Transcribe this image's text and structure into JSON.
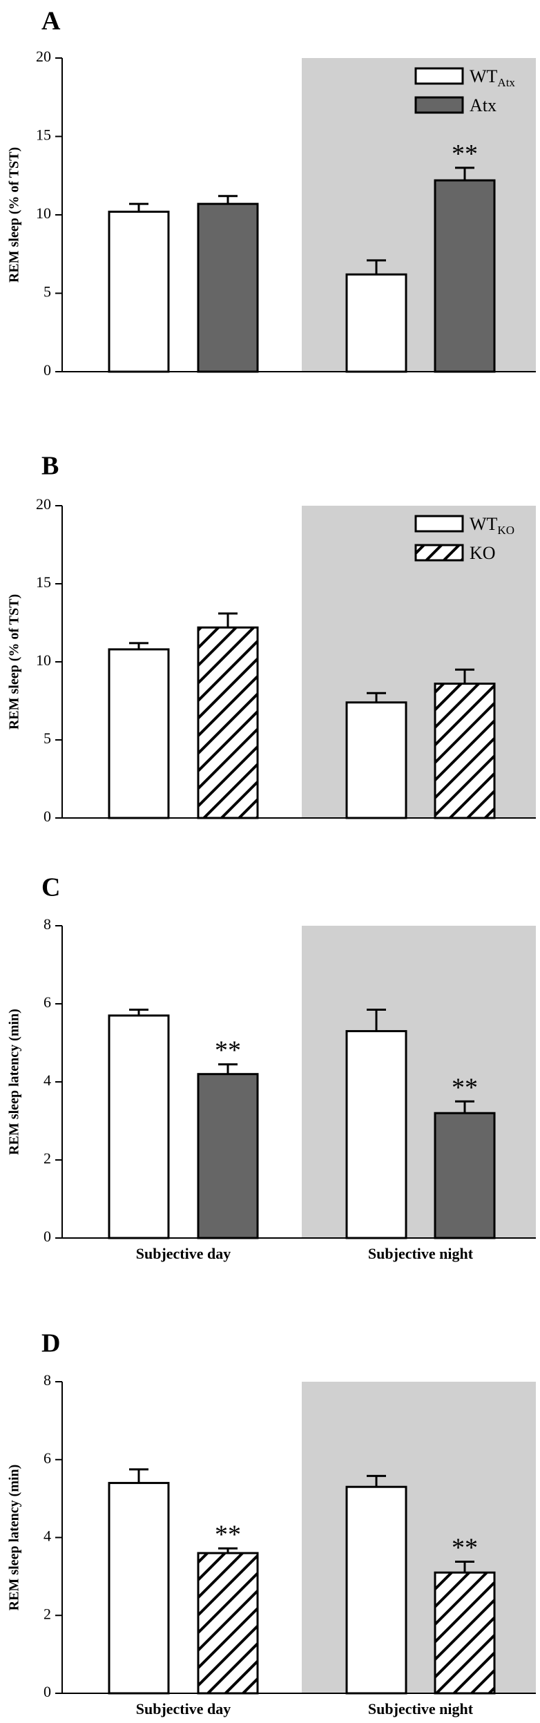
{
  "colors": {
    "shading": "#d0d0d0",
    "wt_fill": "#ffffff",
    "atx_fill": "#666666",
    "outline": "#000000"
  },
  "chart_data": [
    {
      "panel": "A",
      "type": "bar",
      "ylabel": "REM sleep (% of TST)",
      "ylim": [
        0,
        20
      ],
      "yticks": [
        "0",
        "5",
        "10",
        "15",
        "20"
      ],
      "categories": [
        "",
        ""
      ],
      "shaded_group": 1,
      "legend": [
        {
          "label": "WT",
          "sub": "Atx",
          "style": "open"
        },
        {
          "label": "Atx",
          "sub": "",
          "style": "dark"
        }
      ],
      "series": [
        {
          "name": "WT",
          "style": "open",
          "values": [
            10.2,
            6.2
          ],
          "errors": [
            0.5,
            0.9
          ],
          "sig": [
            "",
            ""
          ]
        },
        {
          "name": "Atx",
          "style": "dark",
          "values": [
            10.7,
            12.2
          ],
          "errors": [
            0.5,
            0.8
          ],
          "sig": [
            "",
            "**"
          ]
        }
      ]
    },
    {
      "panel": "B",
      "type": "bar",
      "ylabel": "REM sleep (% of TST)",
      "ylim": [
        0,
        20
      ],
      "yticks": [
        "0",
        "5",
        "10",
        "15",
        "20"
      ],
      "categories": [
        "",
        ""
      ],
      "shaded_group": 1,
      "legend": [
        {
          "label": "WT",
          "sub": "KO",
          "style": "open"
        },
        {
          "label": "KO",
          "sub": "",
          "style": "hatch"
        }
      ],
      "series": [
        {
          "name": "WT",
          "style": "open",
          "values": [
            10.8,
            7.4
          ],
          "errors": [
            0.4,
            0.6
          ],
          "sig": [
            "",
            ""
          ]
        },
        {
          "name": "KO",
          "style": "hatch",
          "values": [
            12.2,
            8.6
          ],
          "errors": [
            0.9,
            0.9
          ],
          "sig": [
            "",
            ""
          ]
        }
      ]
    },
    {
      "panel": "C",
      "type": "bar",
      "ylabel": "REM sleep latency (min)",
      "ylim": [
        0,
        8
      ],
      "yticks": [
        "0",
        "2",
        "4",
        "6",
        "8"
      ],
      "categories": [
        "Subjective day",
        "Subjective night"
      ],
      "shaded_group": 1,
      "legend": [],
      "series": [
        {
          "name": "",
          "style": "open",
          "values": [
            5.7,
            5.3
          ],
          "errors": [
            0.15,
            0.55
          ],
          "sig": [
            "",
            ""
          ]
        },
        {
          "name": "",
          "style": "dark",
          "values": [
            4.2,
            3.2
          ],
          "errors": [
            0.25,
            0.3
          ],
          "sig": [
            "**",
            "**"
          ]
        }
      ]
    },
    {
      "panel": "D",
      "type": "bar",
      "ylabel": "REM sleep latency (min)",
      "ylim": [
        0,
        8
      ],
      "yticks": [
        "0",
        "2",
        "4",
        "6",
        "8"
      ],
      "categories": [
        "Subjective day",
        "Subjective night"
      ],
      "shaded_group": 1,
      "legend": [],
      "series": [
        {
          "name": "",
          "style": "open",
          "values": [
            5.4,
            5.3
          ],
          "errors": [
            0.35,
            0.28
          ],
          "sig": [
            "",
            ""
          ]
        },
        {
          "name": "",
          "style": "hatch",
          "values": [
            3.6,
            3.1
          ],
          "errors": [
            0.12,
            0.28
          ],
          "sig": [
            "**",
            "**"
          ]
        }
      ]
    }
  ]
}
